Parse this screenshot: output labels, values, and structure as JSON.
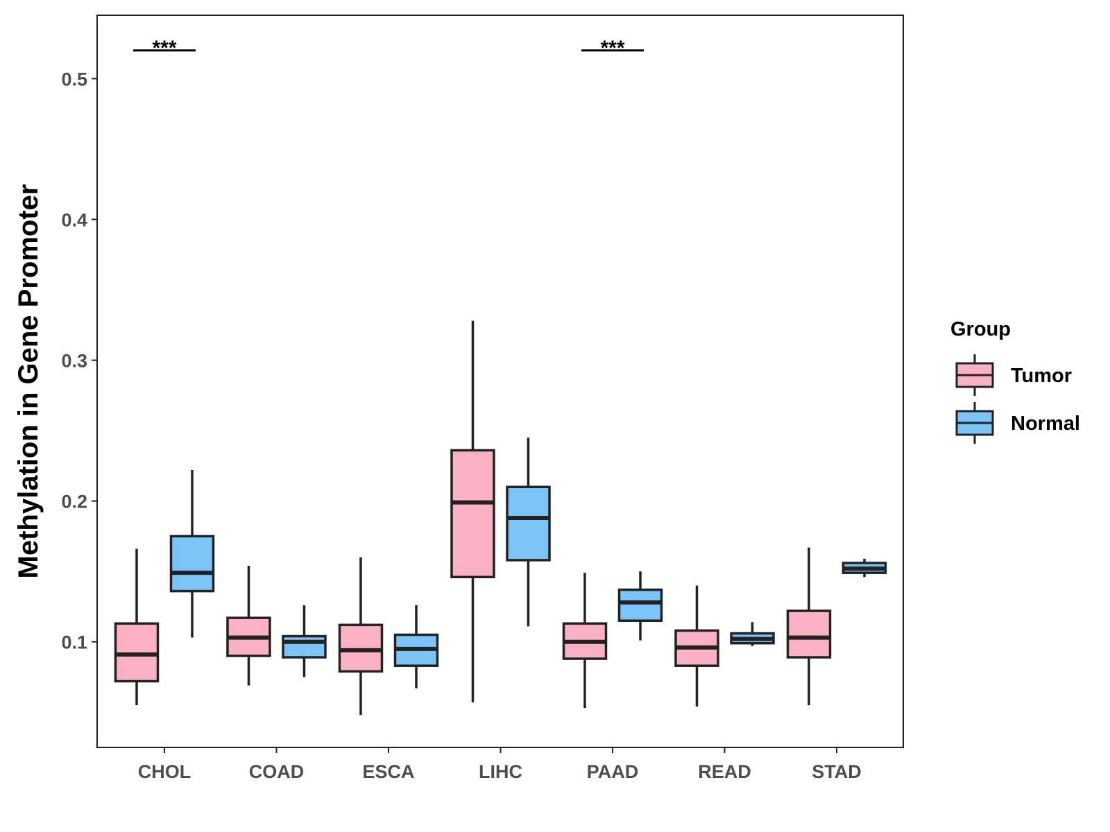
{
  "chart_data": {
    "type": "boxplot",
    "title": "",
    "xlabel": "",
    "ylabel": "Methylation in Gene Promoter",
    "ylim": [
      0.025,
      0.545
    ],
    "yticks": [
      0.1,
      0.2,
      0.3,
      0.4,
      0.5
    ],
    "ytick_labels": [
      "0.1",
      "0.2",
      "0.3",
      "0.4",
      "0.5"
    ],
    "categories": [
      "CHOL",
      "COAD",
      "ESCA",
      "LIHC",
      "PAAD",
      "READ",
      "STAD"
    ],
    "legend": {
      "title": "Group",
      "position": "right",
      "items": [
        {
          "name": "Tumor",
          "color": "#fbb1c4"
        },
        {
          "name": "Normal",
          "color": "#7cc4f8"
        }
      ]
    },
    "series": [
      {
        "name": "Tumor",
        "color": "#fbb1c4",
        "boxes": [
          {
            "category": "CHOL",
            "min": 0.055,
            "q1": 0.072,
            "median": 0.091,
            "q3": 0.113,
            "max": 0.166
          },
          {
            "category": "COAD",
            "min": 0.069,
            "q1": 0.09,
            "median": 0.103,
            "q3": 0.117,
            "max": 0.154
          },
          {
            "category": "ESCA",
            "min": 0.048,
            "q1": 0.079,
            "median": 0.094,
            "q3": 0.112,
            "max": 0.16
          },
          {
            "category": "LIHC",
            "min": 0.057,
            "q1": 0.146,
            "median": 0.199,
            "q3": 0.236,
            "max": 0.328
          },
          {
            "category": "PAAD",
            "min": 0.053,
            "q1": 0.088,
            "median": 0.1,
            "q3": 0.113,
            "max": 0.149
          },
          {
            "category": "READ",
            "min": 0.054,
            "q1": 0.083,
            "median": 0.096,
            "q3": 0.108,
            "max": 0.14
          },
          {
            "category": "STAD",
            "min": 0.055,
            "q1": 0.089,
            "median": 0.103,
            "q3": 0.122,
            "max": 0.167
          }
        ]
      },
      {
        "name": "Normal",
        "color": "#7cc4f8",
        "boxes": [
          {
            "category": "CHOL",
            "min": 0.103,
            "q1": 0.136,
            "median": 0.149,
            "q3": 0.175,
            "max": 0.222
          },
          {
            "category": "COAD",
            "min": 0.075,
            "q1": 0.089,
            "median": 0.1,
            "q3": 0.104,
            "max": 0.126
          },
          {
            "category": "ESCA",
            "min": 0.067,
            "q1": 0.083,
            "median": 0.095,
            "q3": 0.105,
            "max": 0.126
          },
          {
            "category": "LIHC",
            "min": 0.111,
            "q1": 0.158,
            "median": 0.188,
            "q3": 0.21,
            "max": 0.245
          },
          {
            "category": "PAAD",
            "min": 0.101,
            "q1": 0.115,
            "median": 0.128,
            "q3": 0.137,
            "max": 0.15
          },
          {
            "category": "READ",
            "min": 0.097,
            "q1": 0.099,
            "median": 0.102,
            "q3": 0.106,
            "max": 0.114
          },
          {
            "category": "STAD",
            "min": 0.146,
            "q1": 0.149,
            "median": 0.152,
            "q3": 0.156,
            "max": 0.159
          }
        ]
      }
    ],
    "annotations": [
      {
        "category": "CHOL",
        "text": "***",
        "y": 0.52
      },
      {
        "category": "PAAD",
        "text": "***",
        "y": 0.52
      }
    ]
  }
}
